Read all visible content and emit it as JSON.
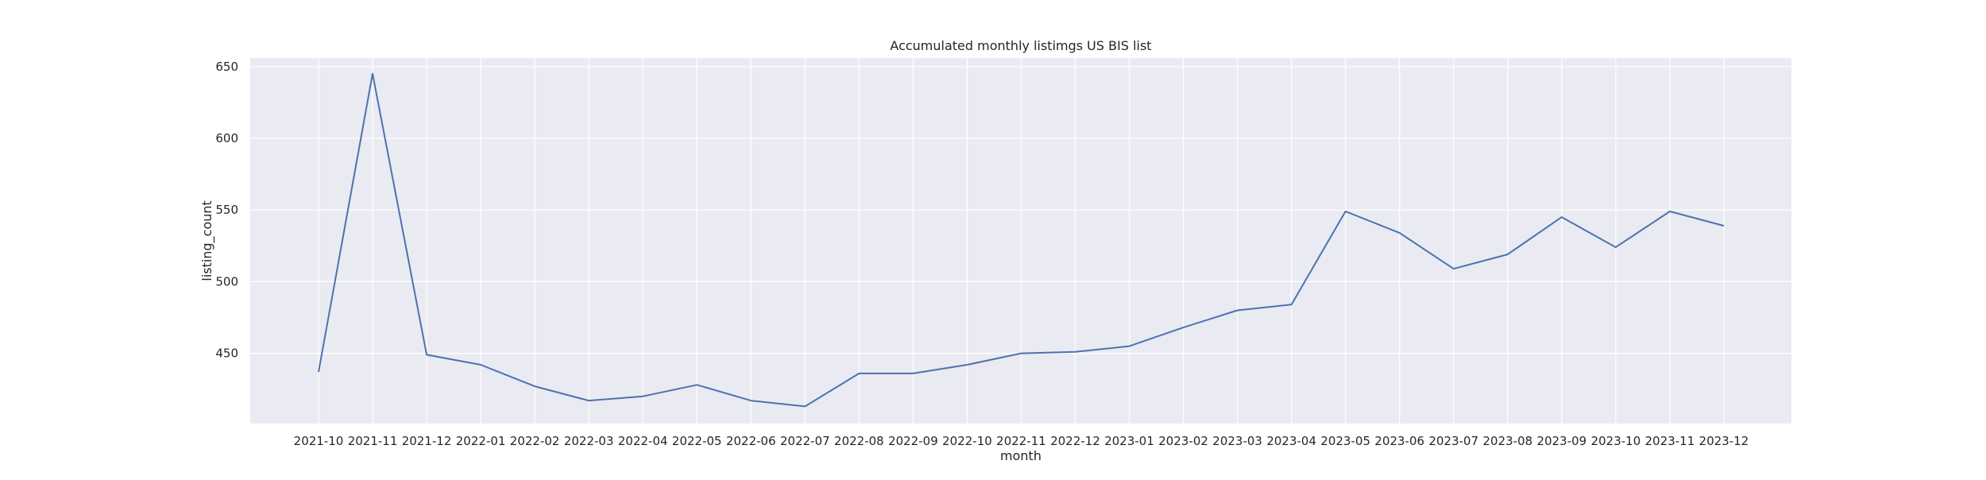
{
  "chart_data": {
    "type": "line",
    "title": "Accumulated monthly listimgs US BIS list",
    "xlabel": "month",
    "ylabel": "listing_count",
    "categories": [
      "2021-10",
      "2021-11",
      "2021-12",
      "2022-01",
      "2022-02",
      "2022-03",
      "2022-04",
      "2022-05",
      "2022-06",
      "2022-07",
      "2022-08",
      "2022-09",
      "2022-10",
      "2022-11",
      "2022-12",
      "2023-01",
      "2023-02",
      "2023-03",
      "2023-04",
      "2023-05",
      "2023-06",
      "2023-07",
      "2023-08",
      "2023-09",
      "2023-10",
      "2023-11",
      "2023-12"
    ],
    "series": [
      {
        "values": [
          437,
          645,
          449,
          442,
          427,
          417,
          420,
          428,
          417,
          413,
          436,
          436,
          442,
          450,
          451,
          455,
          468,
          480,
          484,
          549,
          534,
          509,
          519,
          545,
          524,
          549,
          539
        ]
      }
    ],
    "ylim": [
      401,
      656
    ],
    "yticks": [
      450,
      500,
      550,
      600,
      650
    ],
    "grid": true,
    "legend": "none",
    "colors": {
      "line": "#4c72b0",
      "plot_background": "#eaeaf2",
      "grid": "#ffffff"
    }
  }
}
